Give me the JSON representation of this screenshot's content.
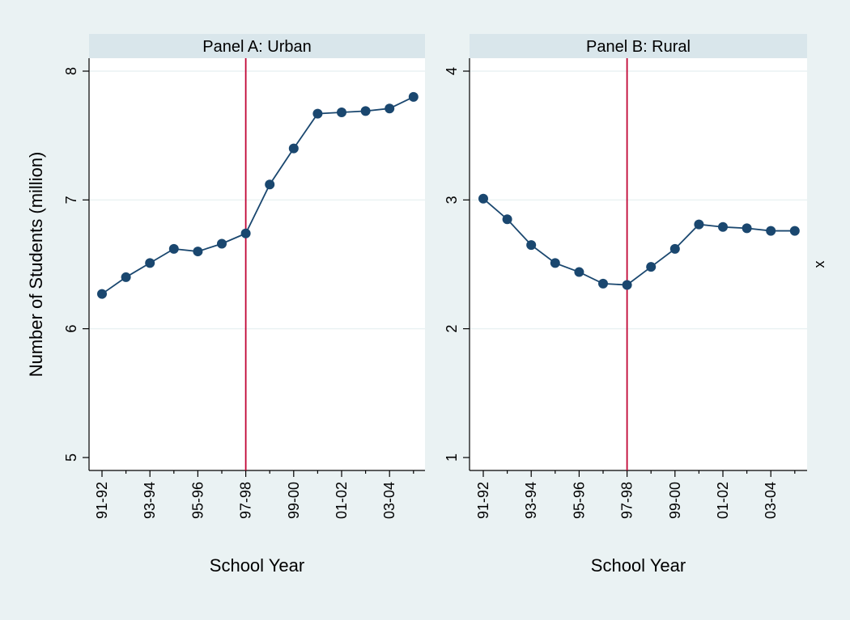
{
  "figure": {
    "outer_background": "#EAF2F3",
    "plot_background": "#FFFFFF",
    "strip_color": "#D9E6EB",
    "line_color": "#1A476F",
    "vline_color": "#C10534",
    "grid_color": "#EAF2F3"
  },
  "chart_data": [
    {
      "type": "line",
      "title": "Panel A: Urban",
      "xlabel": "School Year",
      "ylabel": "Number of Students (million)",
      "x": [
        "91-92",
        "92-93",
        "93-94",
        "94-95",
        "95-96",
        "96-97",
        "97-98",
        "98-99",
        "99-00",
        "00-01",
        "01-02",
        "02-03",
        "03-04",
        "04-05"
      ],
      "x_tick_labels": [
        "91-92",
        "93-94",
        "95-96",
        "97-98",
        "99-00",
        "01-02",
        "03-04"
      ],
      "values": [
        6.27,
        6.4,
        6.51,
        6.62,
        6.6,
        6.66,
        6.74,
        7.12,
        7.4,
        7.67,
        7.68,
        7.69,
        7.71,
        7.8
      ],
      "ylim": [
        5,
        8
      ],
      "yticks": [
        5,
        6,
        7,
        8
      ],
      "vline_at": "97-98",
      "grid": true
    },
    {
      "type": "line",
      "title": "Panel B: Rural",
      "xlabel": "School Year",
      "ylabel": "",
      "right_label": "x",
      "x": [
        "91-92",
        "92-93",
        "93-94",
        "94-95",
        "95-96",
        "96-97",
        "97-98",
        "98-99",
        "99-00",
        "00-01",
        "01-02",
        "02-03",
        "03-04",
        "04-05"
      ],
      "x_tick_labels": [
        "91-92",
        "93-94",
        "95-96",
        "97-98",
        "99-00",
        "01-02",
        "03-04"
      ],
      "values": [
        3.01,
        2.85,
        2.65,
        2.51,
        2.44,
        2.35,
        2.34,
        2.48,
        2.62,
        2.81,
        2.79,
        2.78,
        2.76,
        2.76
      ],
      "ylim": [
        1,
        4
      ],
      "yticks": [
        1,
        2,
        3,
        4
      ],
      "vline_at": "97-98",
      "grid": true
    }
  ]
}
